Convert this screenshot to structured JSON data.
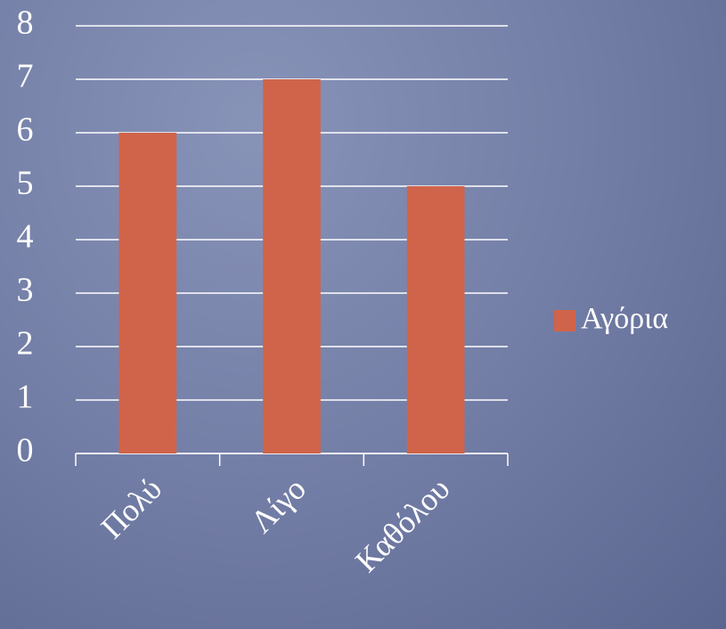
{
  "chart_data": {
    "type": "bar",
    "categories": [
      "Πολύ",
      "Λίγο",
      "Καθόλου"
    ],
    "series": [
      {
        "name": "Αγόρια",
        "color": "#d0644a",
        "values": [
          6,
          7,
          5
        ]
      }
    ],
    "ylim": [
      0,
      8
    ],
    "yticks": [
      0,
      1,
      2,
      3,
      4,
      5,
      6,
      7,
      8
    ],
    "grid": true,
    "legend": "right"
  }
}
